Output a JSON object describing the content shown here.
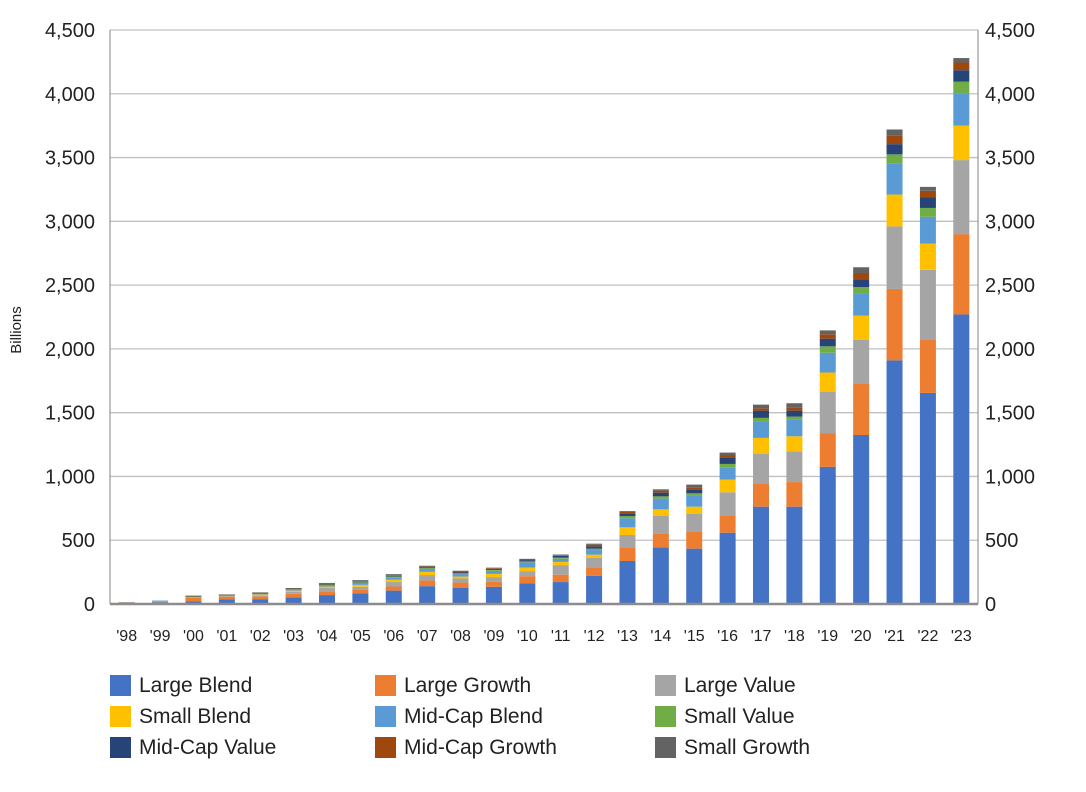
{
  "chart_data": {
    "type": "bar",
    "stacked": true,
    "ylabel": "Billions",
    "ylim": [
      0,
      4500
    ],
    "yticks": [
      "0",
      "500",
      "1,000",
      "1,500",
      "2,000",
      "2,500",
      "3,000",
      "3,500",
      "4,000",
      "4,500"
    ],
    "secondary_axis": true,
    "grid": true,
    "legend_position": "bottom",
    "categories": [
      "'98",
      "'99",
      "'00",
      "'01",
      "'02",
      "'03",
      "'04",
      "'05",
      "'06",
      "'07",
      "'08",
      "'09",
      "'10",
      "'11",
      "'12",
      "'13",
      "'14",
      "'15",
      "'16",
      "'17",
      "'18",
      "'19",
      "'20",
      "'21",
      "'22",
      "'23"
    ],
    "series": [
      {
        "name": "Large Blend",
        "color": "#4472c4",
        "values": [
          10,
          14,
          22,
          35,
          38,
          52,
          70,
          82,
          105,
          140,
          128,
          135,
          163,
          172,
          220,
          337,
          444,
          434,
          559,
          763,
          763,
          1075,
          1325,
          1910,
          1655,
          2270
        ]
      },
      {
        "name": "Large Growth",
        "color": "#ed7d31",
        "values": [
          3,
          8,
          28,
          22,
          20,
          28,
          30,
          28,
          32,
          45,
          40,
          38,
          55,
          58,
          68,
          107,
          105,
          136,
          136,
          183,
          193,
          265,
          405,
          560,
          420,
          630
        ]
      },
      {
        "name": "Large Value",
        "color": "#a5a5a5",
        "values": [
          2,
          3,
          5,
          6,
          10,
          15,
          25,
          25,
          35,
          42,
          32,
          38,
          40,
          75,
          73,
          97,
          141,
          136,
          181,
          230,
          241,
          325,
          340,
          490,
          545,
          580
        ]
      },
      {
        "name": "Small Blend",
        "color": "#ffc000",
        "values": [
          0,
          1,
          2,
          3,
          7,
          10,
          12,
          15,
          18,
          25,
          15,
          25,
          28,
          25,
          26,
          60,
          52,
          57,
          99,
          126,
          118,
          150,
          190,
          250,
          205,
          270
        ]
      },
      {
        "name": "Mid-Cap Blend",
        "color": "#5b9bd5",
        "values": [
          0,
          1,
          3,
          4,
          8,
          10,
          12,
          15,
          20,
          22,
          20,
          25,
          40,
          25,
          36,
          71,
          84,
          87,
          97,
          128,
          128,
          155,
          175,
          245,
          210,
          250
        ]
      },
      {
        "name": "Small Value",
        "color": "#70ad47",
        "values": [
          0,
          0,
          1,
          1,
          2,
          3,
          4,
          5,
          6,
          7,
          6,
          6,
          8,
          8,
          11,
          18,
          18,
          18,
          26,
          29,
          26,
          50,
          50,
          70,
          70,
          95
        ]
      },
      {
        "name": "Mid-Cap Value",
        "color": "#264478",
        "values": [
          0,
          0,
          1,
          1,
          2,
          3,
          4,
          5,
          6,
          7,
          6,
          8,
          10,
          15,
          18,
          21,
          29,
          31,
          52,
          57,
          47,
          60,
          55,
          80,
          85,
          90
        ]
      },
      {
        "name": "Mid-Cap Growth",
        "color": "#9e480e",
        "values": [
          0,
          0,
          2,
          2,
          2,
          2,
          3,
          4,
          4,
          5,
          4,
          5,
          5,
          5,
          13,
          13,
          16,
          16,
          18,
          18,
          26,
          35,
          55,
          65,
          50,
          60
        ]
      },
      {
        "name": "Small Growth",
        "color": "#636363",
        "values": [
          0,
          0,
          1,
          1,
          2,
          2,
          5,
          8,
          8,
          7,
          10,
          5,
          5,
          5,
          8,
          5,
          10,
          21,
          19,
          29,
          32,
          30,
          45,
          50,
          30,
          35
        ]
      }
    ]
  }
}
